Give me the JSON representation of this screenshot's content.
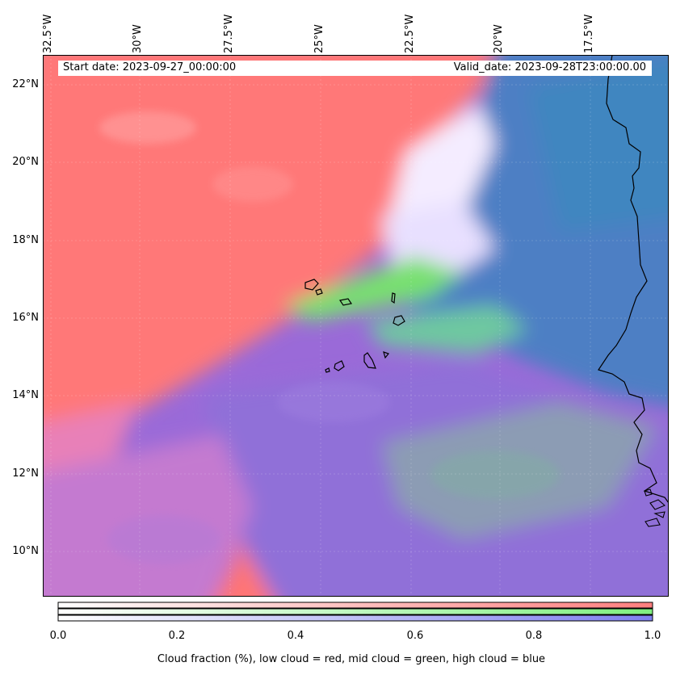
{
  "map": {
    "header": {
      "start_date": "Start date: 2023-09-27_00:00:00",
      "valid_date": "Valid_date: 2023-09-28T23:00:00.00"
    },
    "lon_ticks": [
      "32.5°W",
      "30°W",
      "27.5°W",
      "25°W",
      "22.5°W",
      "20°W",
      "17.5°W"
    ],
    "lat_ticks": [
      "22°N",
      "20°N",
      "18°N",
      "16°N",
      "14°N",
      "12°N",
      "10°N"
    ],
    "colorbar": {
      "ticks": [
        "0.0",
        "0.2",
        "0.4",
        "0.6",
        "0.8",
        "1.0"
      ],
      "label": "Cloud fraction (%), low cloud = red, mid cloud = green, high cloud = blue",
      "colors": {
        "low": "#ff7f7f",
        "mid": "#7fef7f",
        "high": "#7f7fef"
      }
    }
  }
}
